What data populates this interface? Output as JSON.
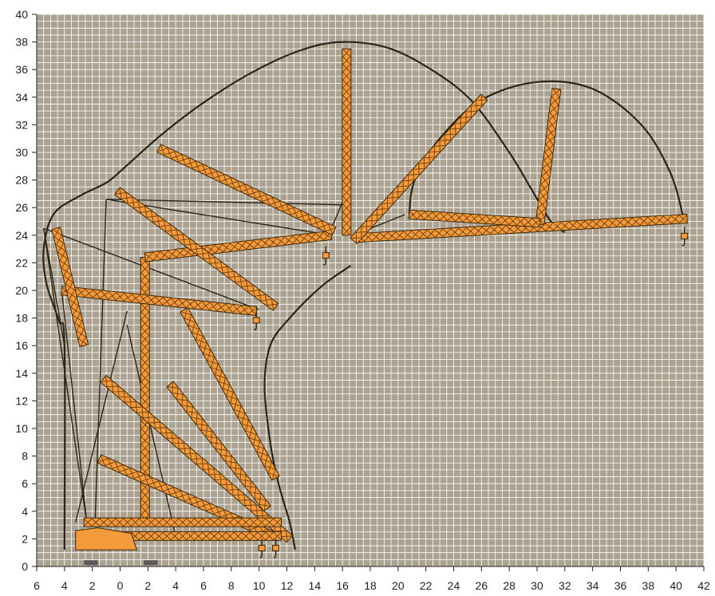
{
  "chart": {
    "colors": {
      "grid_background": "#aca291",
      "grid_lines": "#ffffff",
      "boom_fill": "#f39a3b",
      "boom_lattice": "#6a3e10",
      "envelope": "#2b2418",
      "axis": "#222222"
    },
    "x_axis": {
      "range": [
        -6,
        42
      ],
      "ticks": [
        {
          "value": -6,
          "label": "6"
        },
        {
          "value": -4,
          "label": "4"
        },
        {
          "value": -2,
          "label": "2"
        },
        {
          "value": 0,
          "label": "0"
        },
        {
          "value": 2,
          "label": "2"
        },
        {
          "value": 4,
          "label": "4"
        },
        {
          "value": 6,
          "label": "6"
        },
        {
          "value": 8,
          "label": "8"
        },
        {
          "value": 10,
          "label": "10"
        },
        {
          "value": 12,
          "label": "12"
        },
        {
          "value": 14,
          "label": "14"
        },
        {
          "value": 16,
          "label": "16"
        },
        {
          "value": 18,
          "label": "18"
        },
        {
          "value": 20,
          "label": "20"
        },
        {
          "value": 22,
          "label": "22"
        },
        {
          "value": 24,
          "label": "24"
        },
        {
          "value": 26,
          "label": "26"
        },
        {
          "value": 28,
          "label": "28"
        },
        {
          "value": 30,
          "label": "30"
        },
        {
          "value": 32,
          "label": "32"
        },
        {
          "value": 34,
          "label": "34"
        },
        {
          "value": 36,
          "label": "36"
        },
        {
          "value": 38,
          "label": "38"
        },
        {
          "value": 40,
          "label": "40"
        },
        {
          "value": 42,
          "label": "42"
        }
      ]
    },
    "y_axis": {
      "range": [
        0,
        40
      ],
      "ticks": [
        {
          "value": 0,
          "label": "0"
        },
        {
          "value": 2,
          "label": "2"
        },
        {
          "value": 4,
          "label": "4"
        },
        {
          "value": 6,
          "label": "6"
        },
        {
          "value": 8,
          "label": "8"
        },
        {
          "value": 10,
          "label": "10"
        },
        {
          "value": 12,
          "label": "12"
        },
        {
          "value": 14,
          "label": "14"
        },
        {
          "value": 16,
          "label": "16"
        },
        {
          "value": 18,
          "label": "18"
        },
        {
          "value": 20,
          "label": "20"
        },
        {
          "value": 22,
          "label": "22"
        },
        {
          "value": 24,
          "label": "24"
        },
        {
          "value": 26,
          "label": "26"
        },
        {
          "value": 28,
          "label": "28"
        },
        {
          "value": 30,
          "label": "30"
        },
        {
          "value": 32,
          "label": "32"
        },
        {
          "value": 34,
          "label": "34"
        },
        {
          "value": 36,
          "label": "36"
        },
        {
          "value": 38,
          "label": "38"
        },
        {
          "value": 40,
          "label": "40"
        }
      ]
    },
    "outer_envelope": [
      [
        -4,
        1.2
      ],
      [
        -4,
        16
      ],
      [
        -4.4,
        17.8
      ],
      [
        -5.3,
        20.5
      ],
      [
        -5.5,
        23
      ],
      [
        -4.8,
        25.5
      ],
      [
        -3,
        26.8
      ],
      [
        -1,
        27.8
      ],
      [
        0.2,
        28.8
      ],
      [
        3,
        31.3
      ],
      [
        6,
        33.6
      ],
      [
        9.5,
        35.8
      ],
      [
        13,
        37.4
      ],
      [
        16,
        38
      ],
      [
        19.5,
        37.5
      ],
      [
        23,
        35.6
      ],
      [
        25.5,
        33.5
      ],
      [
        28,
        30
      ],
      [
        29.5,
        27.5
      ],
      [
        31,
        25
      ],
      [
        32,
        24.2
      ]
    ],
    "inner_envelope": [
      [
        16.6,
        21.8
      ],
      [
        14.5,
        20.3
      ],
      [
        12.2,
        18
      ],
      [
        10.8,
        16
      ],
      [
        10.4,
        13
      ],
      [
        10.8,
        9
      ],
      [
        11.4,
        6
      ],
      [
        12.2,
        3.2
      ],
      [
        12.6,
        1.2
      ]
    ],
    "small_arc": [
      [
        20.8,
        25.5
      ],
      [
        21.2,
        28
      ],
      [
        23,
        31
      ],
      [
        26,
        33.8
      ],
      [
        30,
        35.1
      ],
      [
        34,
        34.6
      ],
      [
        37.5,
        32
      ],
      [
        39.6,
        28.5
      ],
      [
        40.6,
        25
      ]
    ],
    "booms": [
      {
        "name": "main-jib-horizontal",
        "from": [
          17,
          23.8
        ],
        "to": [
          40.8,
          25.2
        ]
      },
      {
        "name": "tower-extended",
        "from": [
          1.8,
          3.2
        ],
        "to": [
          1.8,
          22.4
        ]
      },
      {
        "name": "jib-to-tower-top",
        "from": [
          1.8,
          22.4
        ],
        "to": [
          15.2,
          24
        ]
      },
      {
        "name": "fly-jib-vertical",
        "from": [
          16.3,
          24
        ],
        "to": [
          16.3,
          37.5
        ]
      },
      {
        "name": "fly-jib-steep",
        "from": [
          16.8,
          23.6
        ],
        "to": [
          26.2,
          34
        ]
      },
      {
        "name": "fly-jib-raised",
        "from": [
          2.8,
          30.3
        ],
        "to": [
          15.4,
          24.3
        ]
      },
      {
        "name": "jib-upper-arm",
        "from": [
          -0.2,
          27.2
        ],
        "to": [
          11.2,
          18.8
        ]
      },
      {
        "name": "jib-sloped-left",
        "from": [
          -4.2,
          20
        ],
        "to": [
          9.8,
          18.5
        ]
      },
      {
        "name": "jib-middle-diag",
        "from": [
          4.6,
          18.6
        ],
        "to": [
          11.2,
          6.4
        ]
      },
      {
        "name": "jib-lower-diag-a",
        "from": [
          -1.2,
          13.6
        ],
        "to": [
          12.2,
          2
        ]
      },
      {
        "name": "jib-lower-diag-b",
        "from": [
          -1.5,
          7.8
        ],
        "to": [
          11,
          2.2
        ]
      },
      {
        "name": "jib-lower-diag-c",
        "from": [
          3.6,
          13.2
        ],
        "to": [
          10.6,
          4.2
        ]
      },
      {
        "name": "upper-jib-link",
        "from": [
          31.4,
          34.6
        ],
        "to": [
          30.2,
          24.8
        ]
      },
      {
        "name": "arc-jib-link",
        "from": [
          20.8,
          25.5
        ],
        "to": [
          30.2,
          24.9
        ]
      },
      {
        "name": "outer-jib-folded",
        "from": [
          -4.6,
          24.5
        ],
        "to": [
          -2.6,
          16
        ]
      },
      {
        "name": "carrier-chassis",
        "from": [
          -2.6,
          3.2
        ],
        "to": [
          11.6,
          3.2
        ]
      },
      {
        "name": "carrier-lower-deck",
        "from": [
          -2.6,
          2.2
        ],
        "to": [
          11.6,
          2.2
        ]
      }
    ],
    "ropes": [
      [
        [
          -5.5,
          24.5
        ],
        [
          10,
          18.6
        ]
      ],
      [
        [
          -1,
          26.6
        ],
        [
          16.2,
          26.2
        ]
      ],
      [
        [
          -1,
          26.6
        ],
        [
          15.2,
          24
        ]
      ],
      [
        [
          -1,
          26.6
        ],
        [
          -1.8,
          3.2
        ]
      ],
      [
        [
          -5.5,
          24.5
        ],
        [
          -4,
          16
        ]
      ],
      [
        [
          -5.5,
          24.5
        ],
        [
          -2.4,
          3.2
        ]
      ],
      [
        [
          -4.2,
          20
        ],
        [
          -2.4,
          3.2
        ]
      ],
      [
        [
          15,
          24
        ],
        [
          16,
          26.4
        ]
      ],
      [
        [
          20.5,
          25.5
        ],
        [
          16.8,
          24
        ]
      ],
      [
        [
          0.5,
          18.5
        ],
        [
          -3.2,
          3.2
        ]
      ],
      [
        [
          0.5,
          17.5
        ],
        [
          4,
          2.2
        ]
      ]
    ],
    "hooks": [
      {
        "name": "hook-jib-tip",
        "x": 40.6,
        "y": 24.6
      },
      {
        "name": "hook-main-jib",
        "x": 14.8,
        "y": 23.2
      },
      {
        "name": "hook-upper-arm",
        "x": 9.8,
        "y": 18.5
      },
      {
        "name": "hook-carrier-a",
        "x": 10.2,
        "y": 2
      },
      {
        "name": "hook-carrier-b",
        "x": 11.2,
        "y": 2
      }
    ]
  }
}
